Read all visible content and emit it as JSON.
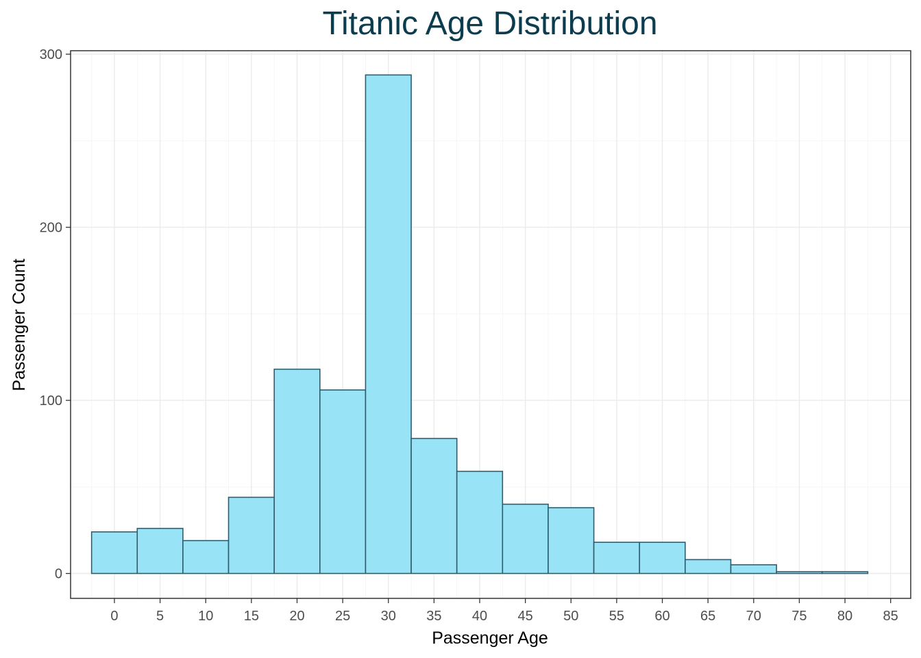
{
  "chart_data": {
    "type": "bar",
    "title": "Titanic Age Distribution",
    "xlabel": "Passenger Age",
    "ylabel": "Passenger Count",
    "bin_width": 5,
    "bins": [
      {
        "center": 0,
        "count": 24
      },
      {
        "center": 5,
        "count": 26
      },
      {
        "center": 10,
        "count": 19
      },
      {
        "center": 15,
        "count": 44
      },
      {
        "center": 20,
        "count": 118
      },
      {
        "center": 25,
        "count": 106
      },
      {
        "center": 30,
        "count": 288
      },
      {
        "center": 35,
        "count": 78
      },
      {
        "center": 40,
        "count": 59
      },
      {
        "center": 45,
        "count": 40
      },
      {
        "center": 50,
        "count": 38
      },
      {
        "center": 55,
        "count": 18
      },
      {
        "center": 60,
        "count": 18
      },
      {
        "center": 65,
        "count": 8
      },
      {
        "center": 70,
        "count": 5
      },
      {
        "center": 75,
        "count": 1
      },
      {
        "center": 80,
        "count": 1
      }
    ],
    "x_ticks": [
      0,
      5,
      10,
      15,
      20,
      25,
      30,
      35,
      40,
      45,
      50,
      55,
      60,
      65,
      70,
      75,
      80,
      85
    ],
    "y_ticks": [
      0,
      100,
      200,
      300
    ],
    "xlim": [
      -4.8,
      87.2
    ],
    "ylim": [
      -14.4,
      302
    ],
    "grid": true,
    "colors": {
      "bar_fill": "#98e4f6",
      "bar_stroke": "#2f5d6e",
      "title": "#0b3d4f"
    }
  }
}
